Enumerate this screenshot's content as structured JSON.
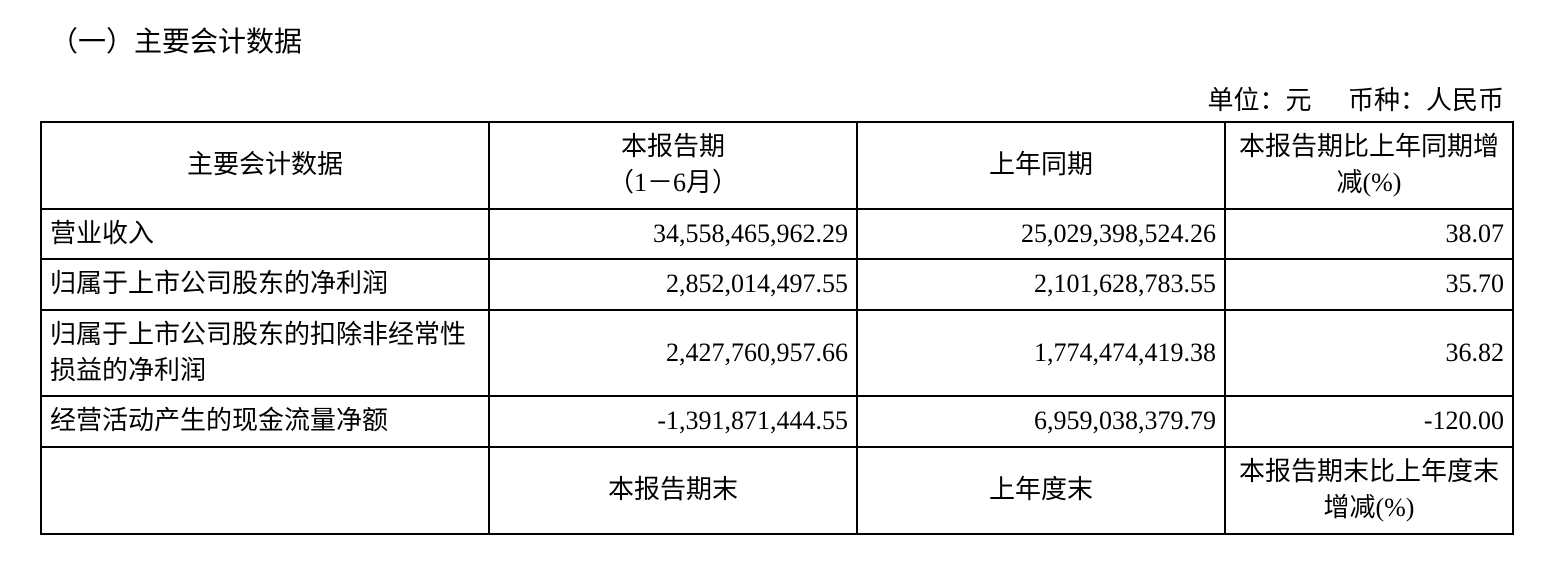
{
  "section": {
    "title": "（一）主要会计数据"
  },
  "unit_info": {
    "unit_label": "单位：元",
    "currency_label": "币种：人民币"
  },
  "table": {
    "columns": [
      "主要会计数据",
      "本报告期\n（1－6月）",
      "上年同期",
      "本报告期比上年同期增减(%)"
    ],
    "column_widths_pct": [
      28,
      23,
      23,
      18
    ],
    "rows": [
      {
        "label": "营业收入",
        "current": "34,558,465,962.29",
        "prior": "25,029,398,524.26",
        "change": "38.07"
      },
      {
        "label": "归属于上市公司股东的净利润",
        "current": "2,852,014,497.55",
        "prior": "2,101,628,783.55",
        "change": "35.70"
      },
      {
        "label": "归属于上市公司股东的扣除非经常性损益的净利润",
        "current": "2,427,760,957.66",
        "prior": "1,774,474,419.38",
        "change": "36.82"
      },
      {
        "label": "经营活动产生的现金流量净额",
        "current": "-1,391,871,444.55",
        "prior": "6,959,038,379.79",
        "change": "-120.00"
      }
    ],
    "sub_header": {
      "col1": "",
      "col2": "本报告期末",
      "col3": "上年度末",
      "col4": "本报告期末比上年度末增减(%)"
    }
  },
  "style": {
    "font_family": "SimSun",
    "title_fontsize": 28,
    "cell_fontsize": 26,
    "border_color": "#000000",
    "border_width": 2,
    "background_color": "#ffffff",
    "text_color": "#000000"
  }
}
